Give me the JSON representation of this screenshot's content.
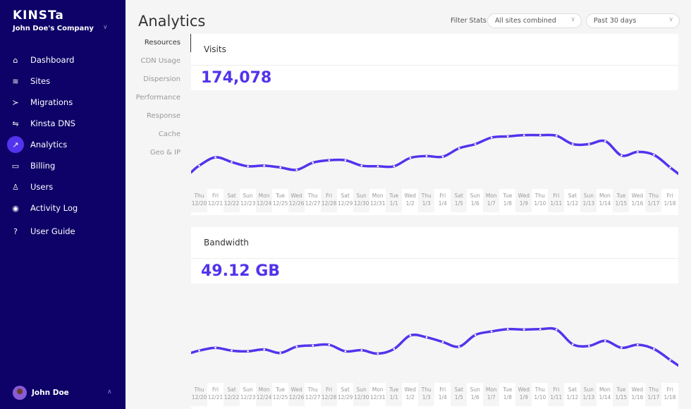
{
  "sidebar": {
    "logo": "KINSTa",
    "company": "John Doe's Company",
    "items": [
      {
        "label": "Dashboard",
        "icon": "⌂",
        "name": "home"
      },
      {
        "label": "Sites",
        "icon": "≋",
        "name": "layers"
      },
      {
        "label": "Migrations",
        "icon": "≻",
        "name": "migration"
      },
      {
        "label": "Kinsta DNS",
        "icon": "⇋",
        "name": "dns"
      },
      {
        "label": "Analytics",
        "icon": "↗",
        "name": "analytics",
        "active": true
      },
      {
        "label": "Billing",
        "icon": "▭",
        "name": "billing"
      },
      {
        "label": "Users",
        "icon": "♙",
        "name": "user-add"
      },
      {
        "label": "Activity Log",
        "icon": "◉",
        "name": "eye"
      },
      {
        "label": "User Guide",
        "icon": "?",
        "name": "help"
      }
    ],
    "user": "John Doe"
  },
  "header": {
    "title": "Analytics",
    "filter_label": "Filter Stats",
    "site_select": "All sites combined",
    "range_select": "Past 30 days"
  },
  "subnav": [
    "Resources",
    "CDN Usage",
    "Dispersion",
    "Performance",
    "Response",
    "Cache",
    "Geo & IP"
  ],
  "colors": {
    "accent": "#5333ed",
    "sidebar": "#0e0268"
  },
  "chart_data": [
    {
      "type": "line",
      "title": "Visits",
      "total": "174,078",
      "categories": [
        [
          "Thu",
          "12/20"
        ],
        [
          "Fri",
          "12/21"
        ],
        [
          "Sat",
          "12/22"
        ],
        [
          "Sun",
          "12/23"
        ],
        [
          "Mon",
          "12/24"
        ],
        [
          "Tue",
          "12/25"
        ],
        [
          "Wed",
          "12/26"
        ],
        [
          "Thu",
          "12/27"
        ],
        [
          "Fri",
          "12/28"
        ],
        [
          "Sat",
          "12/29"
        ],
        [
          "Sun",
          "12/30"
        ],
        [
          "Mon",
          "12/31"
        ],
        [
          "Tue",
          "1/1"
        ],
        [
          "Wed",
          "1/2"
        ],
        [
          "Thu",
          "1/3"
        ],
        [
          "Fri",
          "1/4"
        ],
        [
          "Sat",
          "1/5"
        ],
        [
          "Sun",
          "1/6"
        ],
        [
          "Mon",
          "1/7"
        ],
        [
          "Tue",
          "1/8"
        ],
        [
          "Wed",
          "1/9"
        ],
        [
          "Thu",
          "1/10"
        ],
        [
          "Fri",
          "1/11"
        ],
        [
          "Sat",
          "1/12"
        ],
        [
          "Sun",
          "1/13"
        ],
        [
          "Mon",
          "1/14"
        ],
        [
          "Tue",
          "1/15"
        ],
        [
          "Wed",
          "1/16"
        ],
        [
          "Thu",
          "1/17"
        ],
        [
          "Fri",
          "1/18"
        ]
      ],
      "values": [
        3900,
        5300,
        4500,
        3800,
        3900,
        3600,
        3200,
        4400,
        4800,
        4800,
        3900,
        3800,
        3800,
        5200,
        5500,
        5400,
        6800,
        7500,
        8600,
        8800,
        9000,
        9000,
        8900,
        7500,
        7500,
        8000,
        5600,
        6200,
        5700,
        3600
      ],
      "ylim": [
        0,
        16500
      ],
      "grid": false
    },
    {
      "type": "line",
      "title": "Bandwidth",
      "total": "49.12 GB",
      "categories": [
        [
          "Thu",
          "12/20"
        ],
        [
          "Fri",
          "12/21"
        ],
        [
          "Sat",
          "12/22"
        ],
        [
          "Sun",
          "12/23"
        ],
        [
          "Mon",
          "12/24"
        ],
        [
          "Tue",
          "12/25"
        ],
        [
          "Wed",
          "12/26"
        ],
        [
          "Thu",
          "12/27"
        ],
        [
          "Fri",
          "12/28"
        ],
        [
          "Sat",
          "12/29"
        ],
        [
          "Sun",
          "12/30"
        ],
        [
          "Mon",
          "12/31"
        ],
        [
          "Tue",
          "1/1"
        ],
        [
          "Wed",
          "1/2"
        ],
        [
          "Thu",
          "1/3"
        ],
        [
          "Fri",
          "1/4"
        ],
        [
          "Sat",
          "1/5"
        ],
        [
          "Sun",
          "1/6"
        ],
        [
          "Mon",
          "1/7"
        ],
        [
          "Tue",
          "1/8"
        ],
        [
          "Wed",
          "1/9"
        ],
        [
          "Thu",
          "1/10"
        ],
        [
          "Fri",
          "1/11"
        ],
        [
          "Sat",
          "1/12"
        ],
        [
          "Sun",
          "1/13"
        ],
        [
          "Mon",
          "1/14"
        ],
        [
          "Tue",
          "1/15"
        ],
        [
          "Wed",
          "1/16"
        ],
        [
          "Thu",
          "1/17"
        ],
        [
          "Fri",
          "1/18"
        ]
      ],
      "values": [
        1.38,
        1.5,
        1.38,
        1.35,
        1.43,
        1.28,
        1.55,
        1.6,
        1.63,
        1.35,
        1.4,
        1.25,
        1.45,
        2.03,
        1.95,
        1.75,
        1.55,
        2.05,
        2.2,
        2.3,
        2.28,
        2.3,
        2.28,
        1.65,
        1.58,
        1.8,
        1.5,
        1.63,
        1.45,
        0.98
      ],
      "ylim": [
        0,
        4.25
      ],
      "grid": false
    }
  ]
}
